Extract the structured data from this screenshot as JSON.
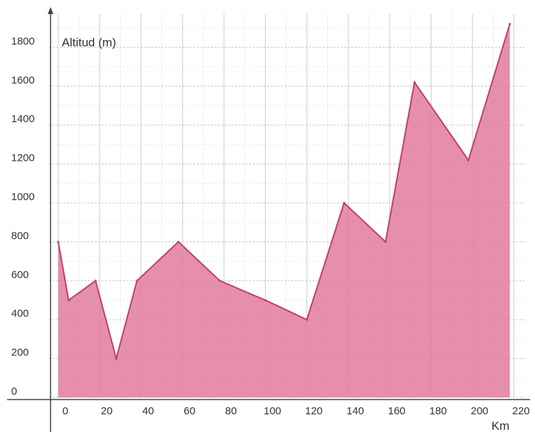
{
  "chart_data": {
    "type": "area",
    "title": "",
    "ylabel": "Altitud (m)",
    "xlabel": "Km",
    "x": [
      0,
      5,
      18,
      28,
      38,
      58,
      78,
      100,
      120,
      138,
      158,
      172,
      198,
      218
    ],
    "series": [
      {
        "values": [
          800,
          500,
          600,
          200,
          600,
          800,
          600,
          500,
          400,
          1000,
          800,
          1620,
          1220,
          1920
        ]
      }
    ],
    "x_ticks": [
      0,
      20,
      40,
      60,
      80,
      100,
      120,
      140,
      160,
      180,
      200,
      220
    ],
    "y_ticks": [
      0,
      200,
      400,
      600,
      800,
      1000,
      1200,
      1400,
      1600,
      1800
    ],
    "xlim": [
      -2,
      220
    ],
    "ylim": [
      0,
      1800
    ],
    "grid": true,
    "fill_color": "#e07aa0",
    "line_color": "#c43a6e",
    "grid_color": "#c8c8c8"
  }
}
